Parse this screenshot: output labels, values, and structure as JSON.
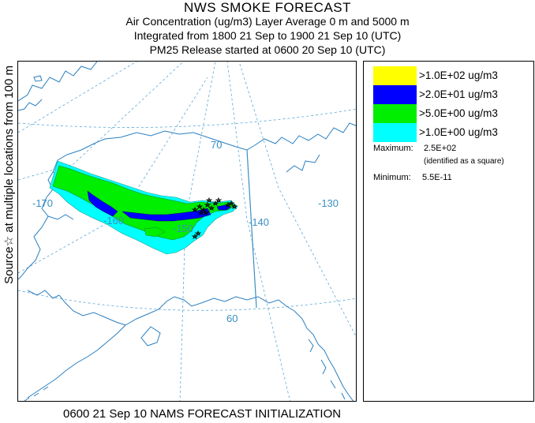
{
  "header": {
    "title": "NWS SMOKE FORECAST",
    "line2": "Air Concentration (ug/m3) Layer Average    0 m and  5000 m",
    "line3": "Integrated from 1800 21 Sep to 1900 21 Sep 10 (UTC)",
    "line4": "PM25 Release started at 0600 20 Sep 10 (UTC)"
  },
  "side_label": "Source☆ at multiple locations  from   100 m",
  "map": {
    "grid_labels": [
      "-170",
      "-160",
      "-150",
      "-140",
      "-130",
      "70",
      "60"
    ],
    "colors": {
      "coast": "#2a7fc0",
      "grid": "#5aa8d8",
      "border": "#3a8fc0",
      "level_1": "#00ffff",
      "level_2": "#00ee00",
      "level_3": "#0000ff",
      "level_4": "#ffff00"
    }
  },
  "legend": {
    "items": [
      {
        "label": ">1.0E+02 ug/m3",
        "color": "#ffff00"
      },
      {
        "label": ">2.0E+01 ug/m3",
        "color": "#0000ff"
      },
      {
        "label": ">5.0E+00 ug/m3",
        "color": "#00ee00"
      },
      {
        "label": ">1.0E+00 ug/m3",
        "color": "#00ffff"
      }
    ],
    "maximum_label": "Maximum:",
    "maximum_value": "2.5E+02",
    "maximum_note": "(identified as a square)",
    "minimum_label": "Minimum:",
    "minimum_value": "5.5E-11"
  },
  "footer": "0600 21 Sep 10 NAMS FORECAST INITIALIZATION"
}
